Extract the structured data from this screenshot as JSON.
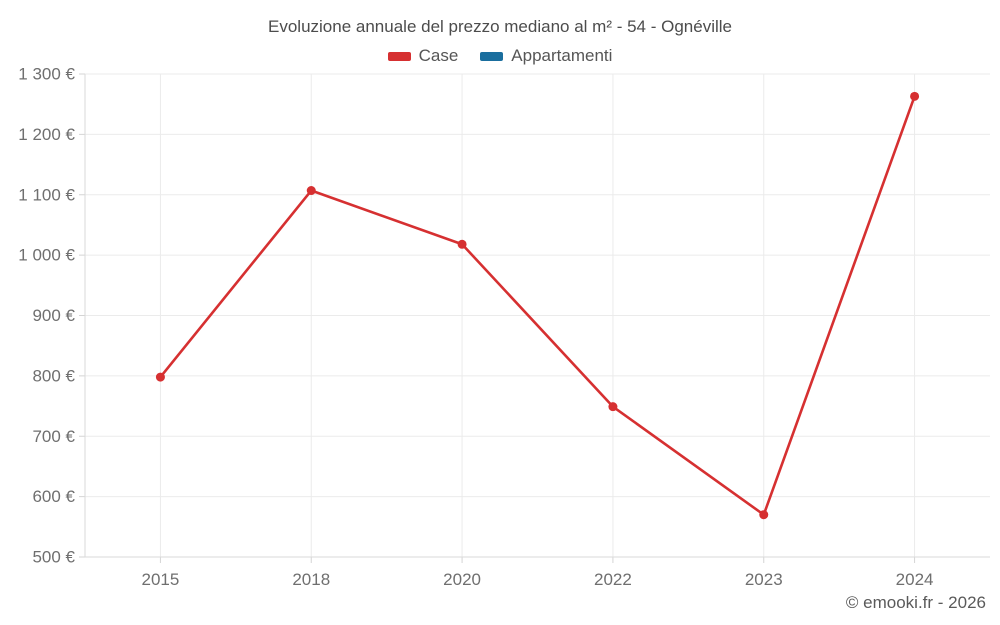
{
  "header": {
    "title": "Evoluzione annuale del prezzo mediano al m² - 54 - Ognéville"
  },
  "footer": {
    "credit": "© emooki.fr - 2026"
  },
  "chart_data": {
    "type": "line",
    "title": "Evoluzione annuale del prezzo mediano al m² - 54 - Ognéville",
    "categories": [
      "2015",
      "2018",
      "2020",
      "2022",
      "2023",
      "2024"
    ],
    "series": [
      {
        "name": "Case",
        "color": "#d63031",
        "values": [
          798,
          1107,
          1018,
          749,
          570,
          1263
        ]
      },
      {
        "name": "Appartamenti",
        "color": "#1a6e9e",
        "values": []
      }
    ],
    "xlabel": "",
    "ylabel": "",
    "ylim": [
      500,
      1300
    ],
    "y_ticks": [
      500,
      600,
      700,
      800,
      900,
      1000,
      1100,
      1200,
      1300
    ],
    "y_tick_labels": [
      "500 €",
      "600 €",
      "700 €",
      "800 €",
      "900 €",
      "1 000 €",
      "1 100 €",
      "1 200 €",
      "1 300 €"
    ],
    "grid": true,
    "legend_position": "top",
    "marker": "circle"
  }
}
